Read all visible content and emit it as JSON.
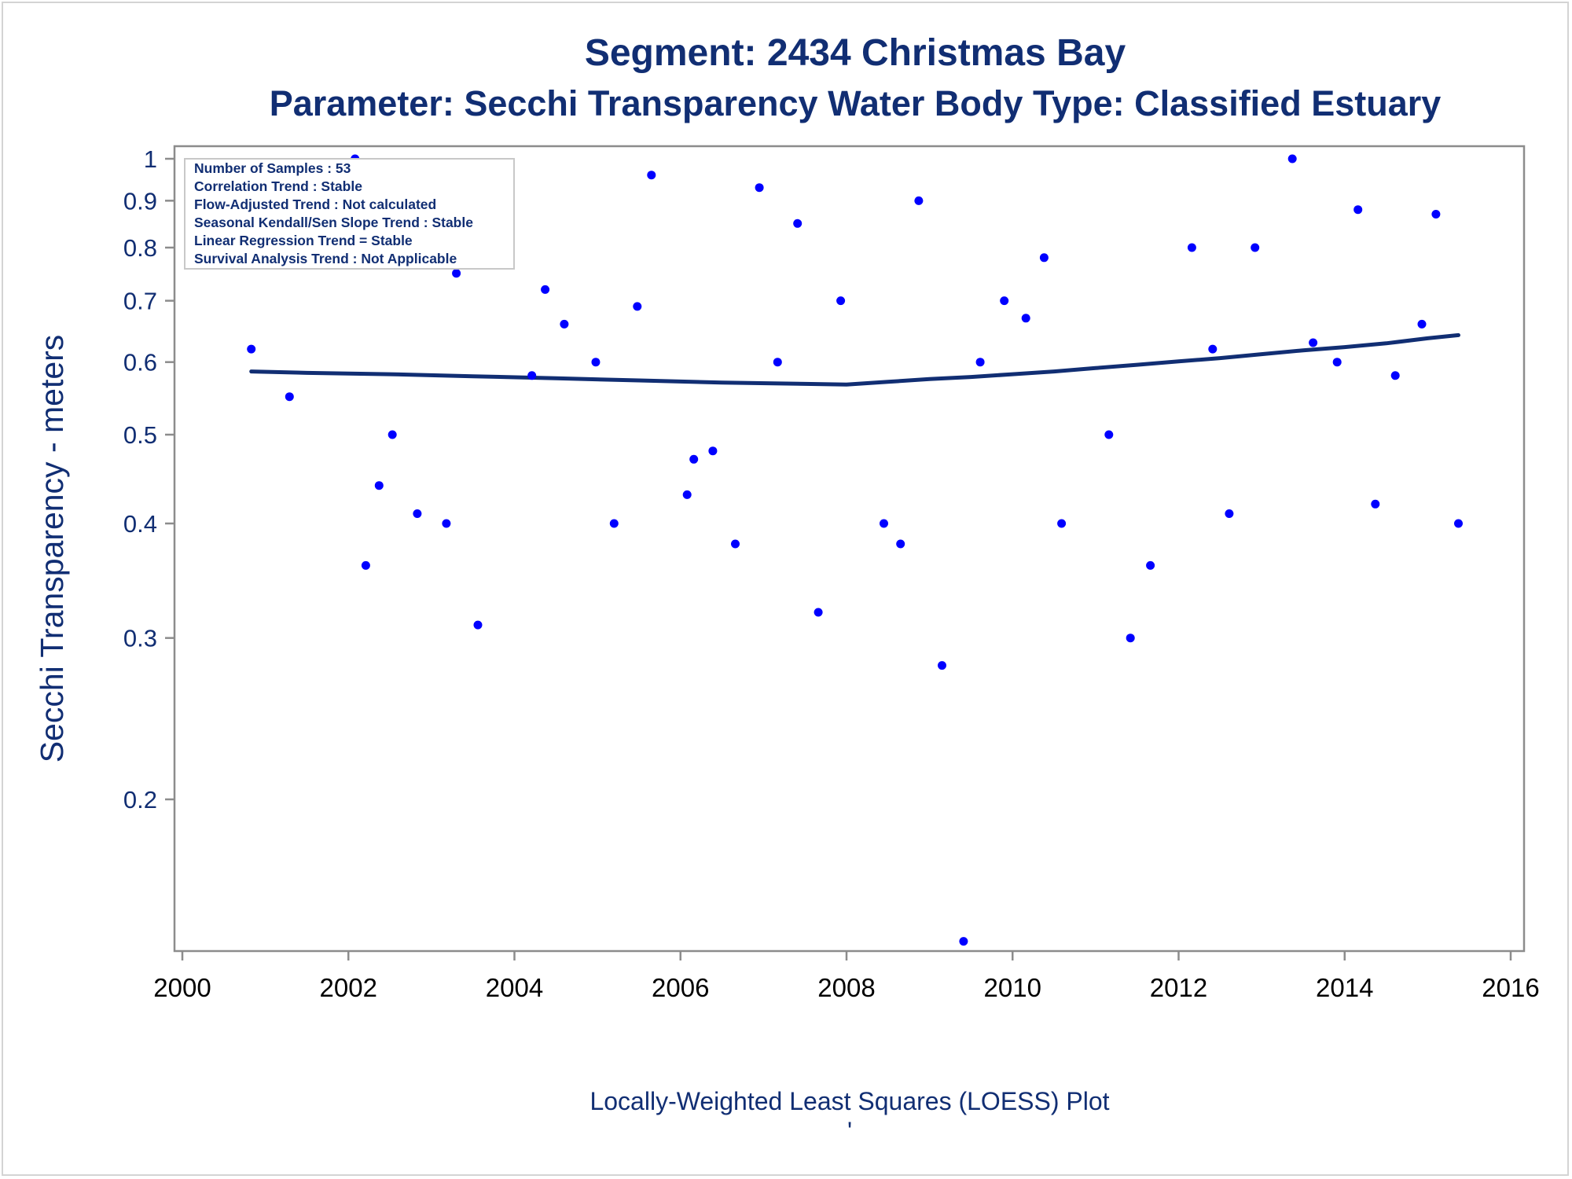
{
  "colors": {
    "text": "#112e73",
    "points": "#0000ff",
    "loess_line": "#112e73",
    "axis": "#8c8c8c",
    "x_tick_text": "#000000"
  },
  "header": {
    "line1": "Segment: 2434  Christmas Bay",
    "line2": "Parameter: Secchi Transparency   Water Body Type: Classified Estuary"
  },
  "inset": {
    "lines": [
      "Number of Samples : 53",
      "Correlation Trend : Stable",
      "Flow-Adjusted Trend : Not calculated",
      "Seasonal Kendall/Sen Slope Trend : Stable",
      "Linear Regression Trend = Stable",
      "Survival Analysis Trend : Not Applicable"
    ]
  },
  "footer": {
    "caption": "Locally-Weighted Least Squares (LOESS) Plot",
    "mark": "'"
  },
  "chart_data": {
    "type": "scatter",
    "title": "Segment: 2434  Christmas Bay",
    "subtitle": "Parameter: Secchi Transparency   Water Body Type: Classified Estuary",
    "xlabel": "",
    "ylabel": "Secchi Transparency - meters",
    "y_scale": "log",
    "xlim": [
      2000,
      2016
    ],
    "ylim": [
      0.13,
      1.0
    ],
    "x_ticks": [
      2000,
      2002,
      2004,
      2006,
      2008,
      2010,
      2012,
      2014,
      2016
    ],
    "y_ticks": [
      0.2,
      0.3,
      0.4,
      0.5,
      0.6,
      0.7,
      0.8,
      0.9,
      1
    ],
    "grid": false,
    "legend": "none",
    "series": [
      {
        "type": "scatter",
        "x": [
          2000.83,
          2001.29,
          2002.08,
          2002.21,
          2002.37,
          2002.53,
          2002.83,
          2003.18,
          2003.3,
          2003.56,
          2003.93,
          2004.21,
          2004.37,
          2004.6,
          2004.98,
          2005.2,
          2005.48,
          2005.65,
          2006.08,
          2006.16,
          2006.39,
          2006.66,
          2006.95,
          2007.17,
          2007.41,
          2007.66,
          2007.93,
          2008.45,
          2008.65,
          2008.87,
          2009.15,
          2009.41,
          2009.61,
          2009.9,
          2010.16,
          2010.38,
          2010.59,
          2011.16,
          2011.42,
          2011.66,
          2012.16,
          2012.41,
          2012.61,
          2012.92,
          2013.37,
          2013.62,
          2013.91,
          2014.16,
          2014.37,
          2014.61,
          2014.93,
          2015.1,
          2015.37
        ],
        "y": [
          0.62,
          0.55,
          1.0,
          0.36,
          0.44,
          0.5,
          0.41,
          0.4,
          0.75,
          0.31,
          0.78,
          0.58,
          0.72,
          0.66,
          0.6,
          0.4,
          0.69,
          0.96,
          0.43,
          0.47,
          0.48,
          0.38,
          0.93,
          0.6,
          0.85,
          0.32,
          0.7,
          0.4,
          0.38,
          0.9,
          0.28,
          0.14,
          0.6,
          0.7,
          0.67,
          0.78,
          0.4,
          0.5,
          0.3,
          0.36,
          0.8,
          0.62,
          0.41,
          0.8,
          1.0,
          0.63,
          0.6,
          0.88,
          0.42,
          0.58,
          0.66,
          0.87,
          0.4
        ]
      },
      {
        "type": "line",
        "x": [
          2000.83,
          2001.5,
          2002.5,
          2003.5,
          2004.5,
          2005.5,
          2006.5,
          2007.5,
          2008.0,
          2008.5,
          2009.0,
          2009.5,
          2010.0,
          2010.5,
          2011.0,
          2011.5,
          2012.0,
          2012.5,
          2013.0,
          2013.5,
          2014.0,
          2014.5,
          2015.0,
          2015.37
        ],
        "y": [
          0.586,
          0.584,
          0.582,
          0.579,
          0.576,
          0.573,
          0.57,
          0.568,
          0.567,
          0.571,
          0.575,
          0.578,
          0.582,
          0.586,
          0.591,
          0.596,
          0.601,
          0.606,
          0.612,
          0.618,
          0.623,
          0.629,
          0.637,
          0.642
        ]
      }
    ]
  }
}
